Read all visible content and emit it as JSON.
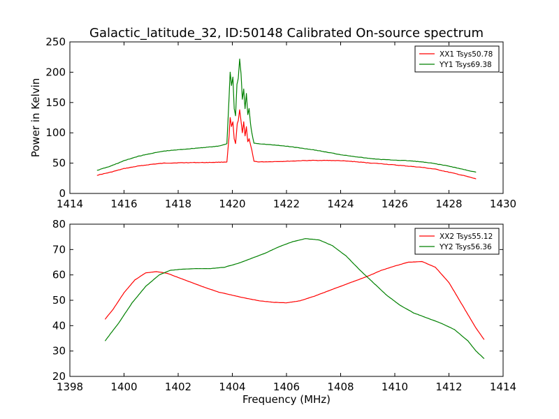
{
  "figure": {
    "title": "Galactic_latitude_32, ID:50148 Calibrated On-source spectrum"
  },
  "chart_data": [
    {
      "type": "line",
      "title": "Galactic_latitude_32, ID:50148 Calibrated On-source spectrum",
      "xlabel": "",
      "ylabel": "Power in Kelvin",
      "xlim": [
        1414,
        1430
      ],
      "ylim": [
        0,
        250
      ],
      "xticks": [
        "1414",
        "1416",
        "1418",
        "1420",
        "1422",
        "1424",
        "1426",
        "1428",
        "1430"
      ],
      "yticks": [
        "0",
        "50",
        "100",
        "150",
        "200",
        "250"
      ],
      "grid": false,
      "legend_position": "top-right",
      "series": [
        {
          "name": "XX1 Tsys50.78",
          "color": "#ff0000",
          "points": [
            [
              1415.0,
              30
            ],
            [
              1415.5,
              35
            ],
            [
              1416.0,
              41
            ],
            [
              1416.5,
              45
            ],
            [
              1417.0,
              48
            ],
            [
              1417.5,
              50
            ],
            [
              1418.0,
              50.5
            ],
            [
              1418.5,
              51
            ],
            [
              1419.0,
              51
            ],
            [
              1419.5,
              51.5
            ],
            [
              1419.8,
              52
            ],
            [
              1419.88,
              95
            ],
            [
              1419.92,
              125
            ],
            [
              1419.97,
              110
            ],
            [
              1420.02,
              118
            ],
            [
              1420.07,
              90
            ],
            [
              1420.12,
              82
            ],
            [
              1420.18,
              115
            ],
            [
              1420.22,
              120
            ],
            [
              1420.27,
              138
            ],
            [
              1420.32,
              120
            ],
            [
              1420.37,
              100
            ],
            [
              1420.42,
              118
            ],
            [
              1420.47,
              95
            ],
            [
              1420.52,
              110
            ],
            [
              1420.57,
              85
            ],
            [
              1420.62,
              90
            ],
            [
              1420.67,
              80
            ],
            [
              1420.72,
              72
            ],
            [
              1420.8,
              53
            ],
            [
              1421.0,
              52
            ],
            [
              1421.5,
              52.5
            ],
            [
              1422.0,
              53
            ],
            [
              1422.5,
              54
            ],
            [
              1423.0,
              54.5
            ],
            [
              1423.5,
              54.5
            ],
            [
              1424.0,
              54
            ],
            [
              1424.5,
              52.5
            ],
            [
              1425.0,
              50.5
            ],
            [
              1425.5,
              49
            ],
            [
              1426.0,
              47
            ],
            [
              1426.5,
              45
            ],
            [
              1427.0,
              43
            ],
            [
              1427.5,
              40
            ],
            [
              1428.0,
              35
            ],
            [
              1428.5,
              30
            ],
            [
              1429.0,
              24
            ]
          ]
        },
        {
          "name": "YY1 Tsys69.38",
          "color": "#008000",
          "points": [
            [
              1415.0,
              38
            ],
            [
              1415.5,
              45
            ],
            [
              1416.0,
              54
            ],
            [
              1416.5,
              61
            ],
            [
              1417.0,
              66
            ],
            [
              1417.5,
              70
            ],
            [
              1418.0,
              72
            ],
            [
              1418.5,
              74
            ],
            [
              1419.0,
              76
            ],
            [
              1419.5,
              78
            ],
            [
              1419.8,
              82
            ],
            [
              1419.88,
              160
            ],
            [
              1419.92,
              200
            ],
            [
              1419.97,
              178
            ],
            [
              1420.02,
              192
            ],
            [
              1420.07,
              140
            ],
            [
              1420.12,
              128
            ],
            [
              1420.17,
              180
            ],
            [
              1420.22,
              190
            ],
            [
              1420.27,
              222
            ],
            [
              1420.32,
              198
            ],
            [
              1420.37,
              155
            ],
            [
              1420.42,
              172
            ],
            [
              1420.47,
              140
            ],
            [
              1420.52,
              165
            ],
            [
              1420.57,
              130
            ],
            [
              1420.62,
              140
            ],
            [
              1420.67,
              115
            ],
            [
              1420.72,
              100
            ],
            [
              1420.8,
              83
            ],
            [
              1421.0,
              82
            ],
            [
              1421.5,
              80
            ],
            [
              1422.0,
              78
            ],
            [
              1422.5,
              75
            ],
            [
              1423.0,
              72
            ],
            [
              1423.5,
              68
            ],
            [
              1424.0,
              64
            ],
            [
              1424.5,
              61
            ],
            [
              1425.0,
              58
            ],
            [
              1425.5,
              56
            ],
            [
              1426.0,
              55
            ],
            [
              1426.5,
              54
            ],
            [
              1427.0,
              52
            ],
            [
              1427.5,
              49
            ],
            [
              1428.0,
              45
            ],
            [
              1428.5,
              40
            ],
            [
              1429.0,
              35
            ]
          ]
        }
      ]
    },
    {
      "type": "line",
      "title": "",
      "xlabel": "Frequency (MHz)",
      "ylabel": "",
      "xlim": [
        1398,
        1414
      ],
      "ylim": [
        20,
        80
      ],
      "xticks": [
        "1398",
        "1400",
        "1402",
        "1404",
        "1406",
        "1408",
        "1410",
        "1412",
        "1414"
      ],
      "yticks": [
        "20",
        "30",
        "40",
        "50",
        "60",
        "70",
        "80"
      ],
      "grid": false,
      "legend_position": "top-right",
      "series": [
        {
          "name": "XX2 Tsys55.12",
          "color": "#ff0000",
          "points": [
            [
              1399.3,
              42.5
            ],
            [
              1399.6,
              46.5
            ],
            [
              1400.0,
              53
            ],
            [
              1400.4,
              58
            ],
            [
              1400.8,
              60.8
            ],
            [
              1401.2,
              61.3
            ],
            [
              1401.6,
              60.6
            ],
            [
              1402.0,
              59
            ],
            [
              1402.5,
              57
            ],
            [
              1403.0,
              55
            ],
            [
              1403.5,
              53.2
            ],
            [
              1404.0,
              52
            ],
            [
              1404.5,
              50.8
            ],
            [
              1405.0,
              49.8
            ],
            [
              1405.5,
              49.2
            ],
            [
              1406.0,
              49
            ],
            [
              1406.5,
              49.8
            ],
            [
              1407.0,
              51.5
            ],
            [
              1407.5,
              53.5
            ],
            [
              1408.0,
              55.5
            ],
            [
              1408.5,
              57.5
            ],
            [
              1409.0,
              59.5
            ],
            [
              1409.5,
              61.8
            ],
            [
              1410.0,
              63.5
            ],
            [
              1410.5,
              65
            ],
            [
              1411.0,
              65.3
            ],
            [
              1411.5,
              63
            ],
            [
              1412.0,
              57
            ],
            [
              1412.5,
              48
            ],
            [
              1413.0,
              39
            ],
            [
              1413.3,
              34.5
            ]
          ]
        },
        {
          "name": "YY2 Tsys56.36",
          "color": "#008000",
          "points": [
            [
              1399.3,
              34
            ],
            [
              1399.8,
              41
            ],
            [
              1400.3,
              49
            ],
            [
              1400.8,
              55.5
            ],
            [
              1401.3,
              60
            ],
            [
              1401.7,
              61.8
            ],
            [
              1402.2,
              62.3
            ],
            [
              1402.7,
              62.5
            ],
            [
              1403.2,
              62.5
            ],
            [
              1403.7,
              63
            ],
            [
              1404.2,
              64.5
            ],
            [
              1404.7,
              66.5
            ],
            [
              1405.2,
              68.5
            ],
            [
              1405.7,
              71
            ],
            [
              1406.2,
              73
            ],
            [
              1406.7,
              74.3
            ],
            [
              1407.2,
              73.8
            ],
            [
              1407.7,
              71.5
            ],
            [
              1408.2,
              67.5
            ],
            [
              1408.7,
              62
            ],
            [
              1409.2,
              57
            ],
            [
              1409.7,
              52
            ],
            [
              1410.2,
              48
            ],
            [
              1410.7,
              45
            ],
            [
              1411.2,
              43
            ],
            [
              1411.7,
              41
            ],
            [
              1412.2,
              38.5
            ],
            [
              1412.7,
              34
            ],
            [
              1413.0,
              30
            ],
            [
              1413.3,
              27
            ]
          ]
        }
      ]
    }
  ]
}
